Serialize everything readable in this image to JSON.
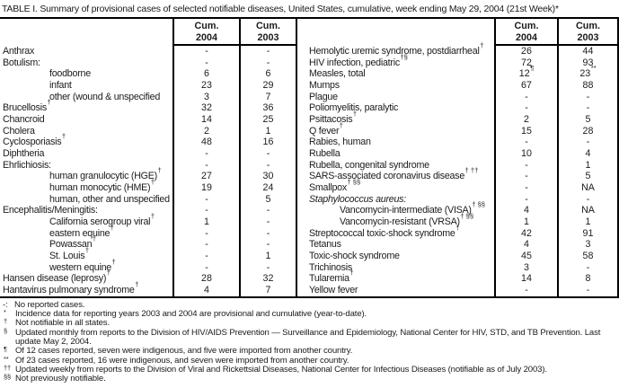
{
  "title": "TABLE I. Summary of provisional cases of selected notifiable diseases, United States, cumulative, week ending May 29, 2004 (21st Week)*",
  "table": {
    "header": {
      "cum": "Cum.",
      "y2004": "2004",
      "y2003": "2003"
    },
    "left_rows": [
      {
        "label": "Anthrax",
        "marker": "",
        "indent": false,
        "cum2004": "-",
        "cum2003": "-"
      },
      {
        "label": "Botulism:",
        "marker": "",
        "indent": false,
        "cum2004": "-",
        "cum2003": "-"
      },
      {
        "label": "foodborne",
        "marker": "",
        "indent": true,
        "cum2004": "6",
        "cum2003": "6"
      },
      {
        "label": "infant",
        "marker": "",
        "indent": true,
        "cum2004": "23",
        "cum2003": "29"
      },
      {
        "label": "other (wound & unspecified",
        "marker": "",
        "indent": true,
        "cum2004": "3",
        "cum2003": "7"
      },
      {
        "label": "Brucellosis",
        "marker": "†",
        "indent": false,
        "cum2004": "32",
        "cum2003": "36"
      },
      {
        "label": "Chancroid",
        "marker": "",
        "indent": false,
        "cum2004": "14",
        "cum2003": "25"
      },
      {
        "label": "Cholera",
        "marker": "",
        "indent": false,
        "cum2004": "2",
        "cum2003": "1"
      },
      {
        "label": "Cyclosporiasis",
        "marker": "†",
        "indent": false,
        "cum2004": "48",
        "cum2003": "16"
      },
      {
        "label": "Diphtheria",
        "marker": "",
        "indent": false,
        "cum2004": "-",
        "cum2003": "-"
      },
      {
        "label": "Ehrlichiosis:",
        "marker": "",
        "indent": false,
        "cum2004": "-",
        "cum2003": "-"
      },
      {
        "label": "human granulocytic (HGE)",
        "marker": "†",
        "indent": true,
        "cum2004": "27",
        "cum2003": "30"
      },
      {
        "label": "human monocytic (HME)",
        "marker": "†",
        "indent": true,
        "cum2004": "19",
        "cum2003": "24"
      },
      {
        "label": "human, other and unspecified",
        "marker": "",
        "indent": true,
        "cum2004": "-",
        "cum2003": "5"
      },
      {
        "label": "Encephalitis/Meningitis:",
        "marker": "",
        "indent": false,
        "cum2004": "-",
        "cum2003": "-"
      },
      {
        "label": "California serogroup viral",
        "marker": "†",
        "indent": true,
        "cum2004": "1",
        "cum2003": "-"
      },
      {
        "label": "eastern equine",
        "marker": "†",
        "indent": true,
        "cum2004": "-",
        "cum2003": "-"
      },
      {
        "label": "Powassan",
        "marker": "†",
        "indent": true,
        "cum2004": "-",
        "cum2003": "-"
      },
      {
        "label": "St. Louis",
        "marker": "†",
        "indent": true,
        "cum2004": "-",
        "cum2003": "1"
      },
      {
        "label": "western equine",
        "marker": "†",
        "indent": true,
        "cum2004": "-",
        "cum2003": "-"
      },
      {
        "label": "Hansen disease (leprosy)",
        "marker": "†",
        "indent": false,
        "cum2004": "28",
        "cum2003": "32"
      },
      {
        "label": "Hantavirus pulmonary syndrome",
        "marker": "†",
        "indent": false,
        "cum2004": "4",
        "cum2003": "7"
      }
    ],
    "right_rows": [
      {
        "label": "Hemolytic uremic syndrome, postdiarrheal",
        "marker": "†",
        "indent": false,
        "cum2004": "26",
        "cum2003": "44"
      },
      {
        "label": "HIV infection, pediatric",
        "marker": "†§",
        "indent": false,
        "cum2004": "72",
        "cum2003": "93"
      },
      {
        "label": "Measles, total",
        "marker": "",
        "indent": false,
        "cum2004": "12",
        "cum2004_marker": "¶",
        "cum2003": "23",
        "cum2003_marker": "**"
      },
      {
        "label": "Mumps",
        "marker": "",
        "indent": false,
        "cum2004": "67",
        "cum2003": "88"
      },
      {
        "label": "Plague",
        "marker": "",
        "indent": false,
        "cum2004": "-",
        "cum2003": "-"
      },
      {
        "label": "Poliomyelitis, paralytic",
        "marker": "",
        "indent": false,
        "cum2004": "-",
        "cum2003": "-"
      },
      {
        "label": "Psittacosis",
        "marker": "†",
        "indent": false,
        "cum2004": "2",
        "cum2003": "5"
      },
      {
        "label": "Q fever",
        "marker": "†",
        "indent": false,
        "cum2004": "15",
        "cum2003": "28"
      },
      {
        "label": "Rabies, human",
        "marker": "",
        "indent": false,
        "cum2004": "-",
        "cum2003": "-"
      },
      {
        "label": "Rubella",
        "marker": "",
        "indent": false,
        "cum2004": "10",
        "cum2003": "4"
      },
      {
        "label": "Rubella, congenital syndrome",
        "marker": "",
        "indent": false,
        "cum2004": "-",
        "cum2003": "1"
      },
      {
        "label": "SARS-associated coronavirus disease",
        "marker": "† ††",
        "indent": false,
        "cum2004": "-",
        "cum2003": "5"
      },
      {
        "label": "Smallpox",
        "marker": "† §§",
        "indent": false,
        "cum2004": "-",
        "cum2003": "NA"
      },
      {
        "label": "Staphylococcus aureus:",
        "marker": "",
        "indent": false,
        "italic": true,
        "cum2004": "-",
        "cum2003": "-"
      },
      {
        "label": "Vancomycin-intermediate (VISA)",
        "marker": "† §§",
        "indent": true,
        "cum2004": "4",
        "cum2003": "NA"
      },
      {
        "label": "Vancomycin-resistant (VRSA)",
        "marker": "† §§",
        "indent": true,
        "cum2004": "1",
        "cum2003": "1"
      },
      {
        "label": "Streptococcal toxic-shock syndrome",
        "marker": "†",
        "indent": false,
        "cum2004": "42",
        "cum2003": "91"
      },
      {
        "label": "Tetanus",
        "marker": "",
        "indent": false,
        "cum2004": "4",
        "cum2003": "3"
      },
      {
        "label": "Toxic-shock syndrome",
        "marker": "",
        "indent": false,
        "cum2004": "45",
        "cum2003": "58"
      },
      {
        "label": "Trichinosis",
        "marker": "",
        "indent": false,
        "cum2004": "3",
        "cum2003": "-"
      },
      {
        "label": "Tularemia",
        "marker": "†",
        "indent": false,
        "cum2004": "14",
        "cum2003": "8"
      },
      {
        "label": "Yellow fever",
        "marker": "",
        "indent": false,
        "cum2004": "-",
        "cum2003": "-"
      }
    ]
  },
  "footnotes": [
    {
      "marker": "-:",
      "superscript": false,
      "text": "No reported cases."
    },
    {
      "marker": "*",
      "superscript": true,
      "text": "Incidence data for reporting years 2003 and 2004 are provisional and cumulative (year-to-date)."
    },
    {
      "marker": "†",
      "superscript": true,
      "text": "Not notifiable in all states."
    },
    {
      "marker": "§",
      "superscript": true,
      "text": "Updated monthly from reports to the Division of HIV/AIDS Prevention — Surveillance and Epidemiology, National Center for HIV, STD, and TB Prevention. Last update May 2, 2004."
    },
    {
      "marker": "¶",
      "superscript": true,
      "text": "Of 12 cases reported, seven were indigenous, and five were imported from another country."
    },
    {
      "marker": "**",
      "superscript": true,
      "text": "Of 23 cases reported, 16 were indigenous, and seven were imported from another country."
    },
    {
      "marker": "††",
      "superscript": true,
      "text": "Updated weekly from reports to the Division of Viral and Rickettsial Diseases, National Center for Infectious Diseases (notifiable as of July 2003)."
    },
    {
      "marker": "§§",
      "superscript": true,
      "text": "Not previously notifiable."
    }
  ]
}
